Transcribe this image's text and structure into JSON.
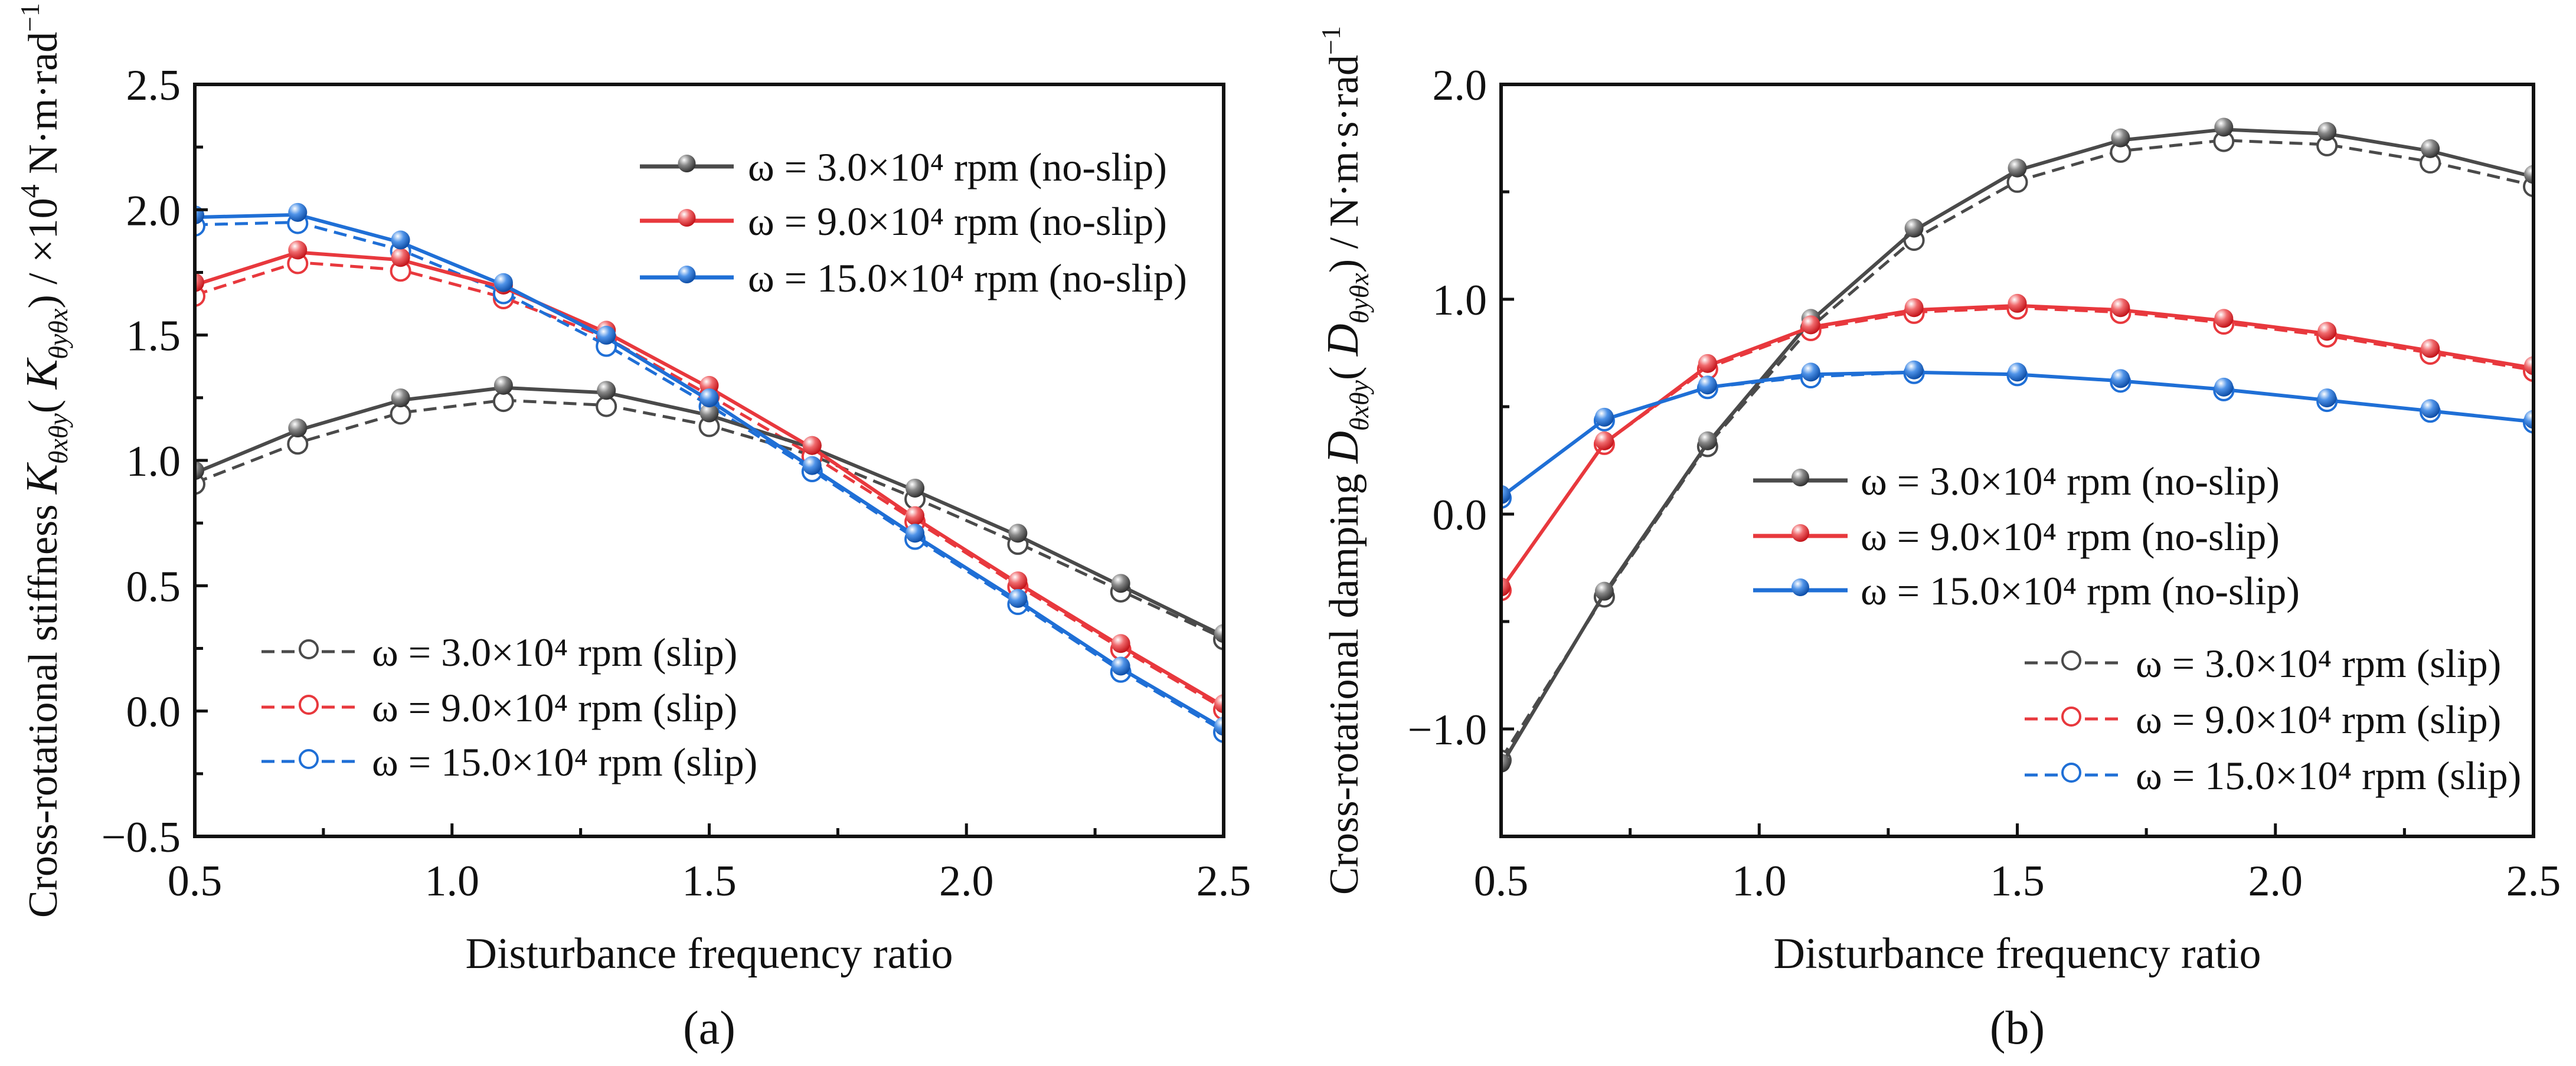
{
  "chart_data": [
    {
      "type": "line",
      "panel_label": "(a)",
      "xlabel": "Disturbance frequency ratio",
      "ylabel_parts": [
        {
          "t": "Cross-rotational stiffness ",
          "s": ""
        },
        {
          "t": "K",
          "s": "i"
        },
        {
          "t": "θxθy",
          "s": "sub"
        },
        {
          "t": "( ",
          "s": ""
        },
        {
          "t": "K",
          "s": "i"
        },
        {
          "t": "θyθx",
          "s": "sub"
        },
        {
          "t": ") / ×10",
          "s": ""
        },
        {
          "t": "4",
          "s": "sup"
        },
        {
          "t": " N·m·rad",
          "s": ""
        },
        {
          "t": "−1",
          "s": "sup"
        }
      ],
      "xlim": [
        0.5,
        2.5
      ],
      "ylim": [
        -0.5,
        2.5
      ],
      "xticks": [
        0.5,
        1.0,
        1.5,
        2.0,
        2.5
      ],
      "xtick_labels": [
        "0.5",
        "1.0",
        "1.5",
        "2.0",
        "2.5"
      ],
      "yticks": [
        -0.5,
        0.0,
        0.5,
        1.0,
        1.5,
        2.0,
        2.5
      ],
      "ytick_labels": [
        "−0.5",
        "0.0",
        "0.5",
        "1.0",
        "1.5",
        "2.0",
        "2.5"
      ],
      "x_minor_step": 0.25,
      "y_minor_step": 0.25,
      "x": [
        0.5,
        0.7,
        0.9,
        1.1,
        1.3,
        1.5,
        1.7,
        1.9,
        2.1,
        2.3,
        2.5
      ],
      "series": [
        {
          "name": "ω = 3.0×10⁴ rpm (no-slip)",
          "color": "#4a4a4a",
          "style": "solid",
          "values": [
            0.95,
            1.12,
            1.24,
            1.29,
            1.27,
            1.18,
            1.05,
            0.88,
            0.7,
            0.5,
            0.3
          ]
        },
        {
          "name": "ω = 9.0×10⁴ rpm (no-slip)",
          "color": "#e8383d",
          "style": "solid",
          "values": [
            1.7,
            1.83,
            1.8,
            1.69,
            1.51,
            1.29,
            1.05,
            0.77,
            0.51,
            0.26,
            0.02
          ]
        },
        {
          "name": "ω = 15.0×10⁴ rpm (no-slip)",
          "color": "#1f6fd6",
          "style": "solid",
          "values": [
            1.97,
            1.98,
            1.87,
            1.7,
            1.49,
            1.24,
            0.97,
            0.7,
            0.44,
            0.17,
            -0.07
          ]
        },
        {
          "name": "ω = 3.0×10⁴ rpm (slip)",
          "color": "#4a4a4a",
          "style": "dashed",
          "values": [
            0.91,
            1.07,
            1.19,
            1.24,
            1.22,
            1.14,
            1.02,
            0.85,
            0.67,
            0.48,
            0.29
          ]
        },
        {
          "name": "ω = 9.0×10⁴ rpm (slip)",
          "color": "#e8383d",
          "style": "dashed",
          "values": [
            1.66,
            1.79,
            1.76,
            1.65,
            1.49,
            1.26,
            1.02,
            0.76,
            0.5,
            0.25,
            0.01
          ]
        },
        {
          "name": "ω = 15.0×10⁴ rpm (slip)",
          "color": "#1f6fd6",
          "style": "dashed",
          "values": [
            1.94,
            1.95,
            1.84,
            1.67,
            1.46,
            1.22,
            0.96,
            0.69,
            0.43,
            0.16,
            -0.08
          ]
        }
      ],
      "legend": [
        "top-right (no-slip)",
        "bottom-left (slip)"
      ]
    },
    {
      "type": "line",
      "panel_label": "(b)",
      "xlabel": "Disturbance frequency ratio",
      "ylabel_parts": [
        {
          "t": "Cross-rotational damping ",
          "s": ""
        },
        {
          "t": "D",
          "s": "i"
        },
        {
          "t": "θxθy",
          "s": "sub"
        },
        {
          "t": "( ",
          "s": ""
        },
        {
          "t": "D",
          "s": "i"
        },
        {
          "t": "θyθx",
          "s": "sub"
        },
        {
          "t": ") / N·m·s·rad",
          "s": ""
        },
        {
          "t": "−1",
          "s": "sup"
        }
      ],
      "xlim": [
        0.5,
        2.5
      ],
      "ylim": [
        -1.5,
        2.0
      ],
      "xticks": [
        0.5,
        1.0,
        1.5,
        2.0,
        2.5
      ],
      "xtick_labels": [
        "0.5",
        "1.0",
        "1.5",
        "2.0",
        "2.5"
      ],
      "yticks": [
        -1.0,
        0.0,
        1.0,
        2.0
      ],
      "ytick_labels": [
        "−1.0",
        "0.0",
        "1.0",
        "2.0"
      ],
      "x_minor_step": 0.25,
      "y_minor_step": 0.5,
      "x": [
        0.5,
        0.7,
        0.9,
        1.1,
        1.3,
        1.5,
        1.7,
        1.9,
        2.1,
        2.3,
        2.5
      ],
      "series": [
        {
          "name": "ω = 3.0×10⁴ rpm (no-slip)",
          "color": "#4a4a4a",
          "style": "solid",
          "values": [
            -1.17,
            -0.37,
            0.33,
            0.9,
            1.32,
            1.6,
            1.74,
            1.79,
            1.77,
            1.69,
            1.57
          ]
        },
        {
          "name": "ω = 9.0×10⁴ rpm (no-slip)",
          "color": "#e8383d",
          "style": "solid",
          "values": [
            -0.35,
            0.33,
            0.69,
            0.87,
            0.95,
            0.97,
            0.95,
            0.9,
            0.84,
            0.76,
            0.68
          ]
        },
        {
          "name": "ω = 15.0×10⁴ rpm (no-slip)",
          "color": "#1f6fd6",
          "style": "solid",
          "values": [
            0.08,
            0.44,
            0.59,
            0.65,
            0.66,
            0.65,
            0.62,
            0.58,
            0.53,
            0.48,
            0.43
          ]
        },
        {
          "name": "ω = 3.0×10⁴ rpm (slip)",
          "color": "#4a4a4a",
          "style": "dashed",
          "values": [
            -1.14,
            -0.38,
            0.32,
            0.87,
            1.28,
            1.55,
            1.69,
            1.74,
            1.72,
            1.64,
            1.53
          ]
        },
        {
          "name": "ω = 9.0×10⁴ rpm (slip)",
          "color": "#e8383d",
          "style": "dashed",
          "values": [
            -0.35,
            0.33,
            0.68,
            0.86,
            0.94,
            0.96,
            0.94,
            0.89,
            0.83,
            0.75,
            0.67
          ]
        },
        {
          "name": "ω = 15.0×10⁴ rpm (slip)",
          "color": "#1f6fd6",
          "style": "dashed",
          "values": [
            0.08,
            0.44,
            0.59,
            0.64,
            0.66,
            0.65,
            0.62,
            0.58,
            0.53,
            0.48,
            0.43
          ]
        }
      ],
      "legend": [
        "center (no-slip)",
        "bottom-right (slip)"
      ]
    }
  ]
}
